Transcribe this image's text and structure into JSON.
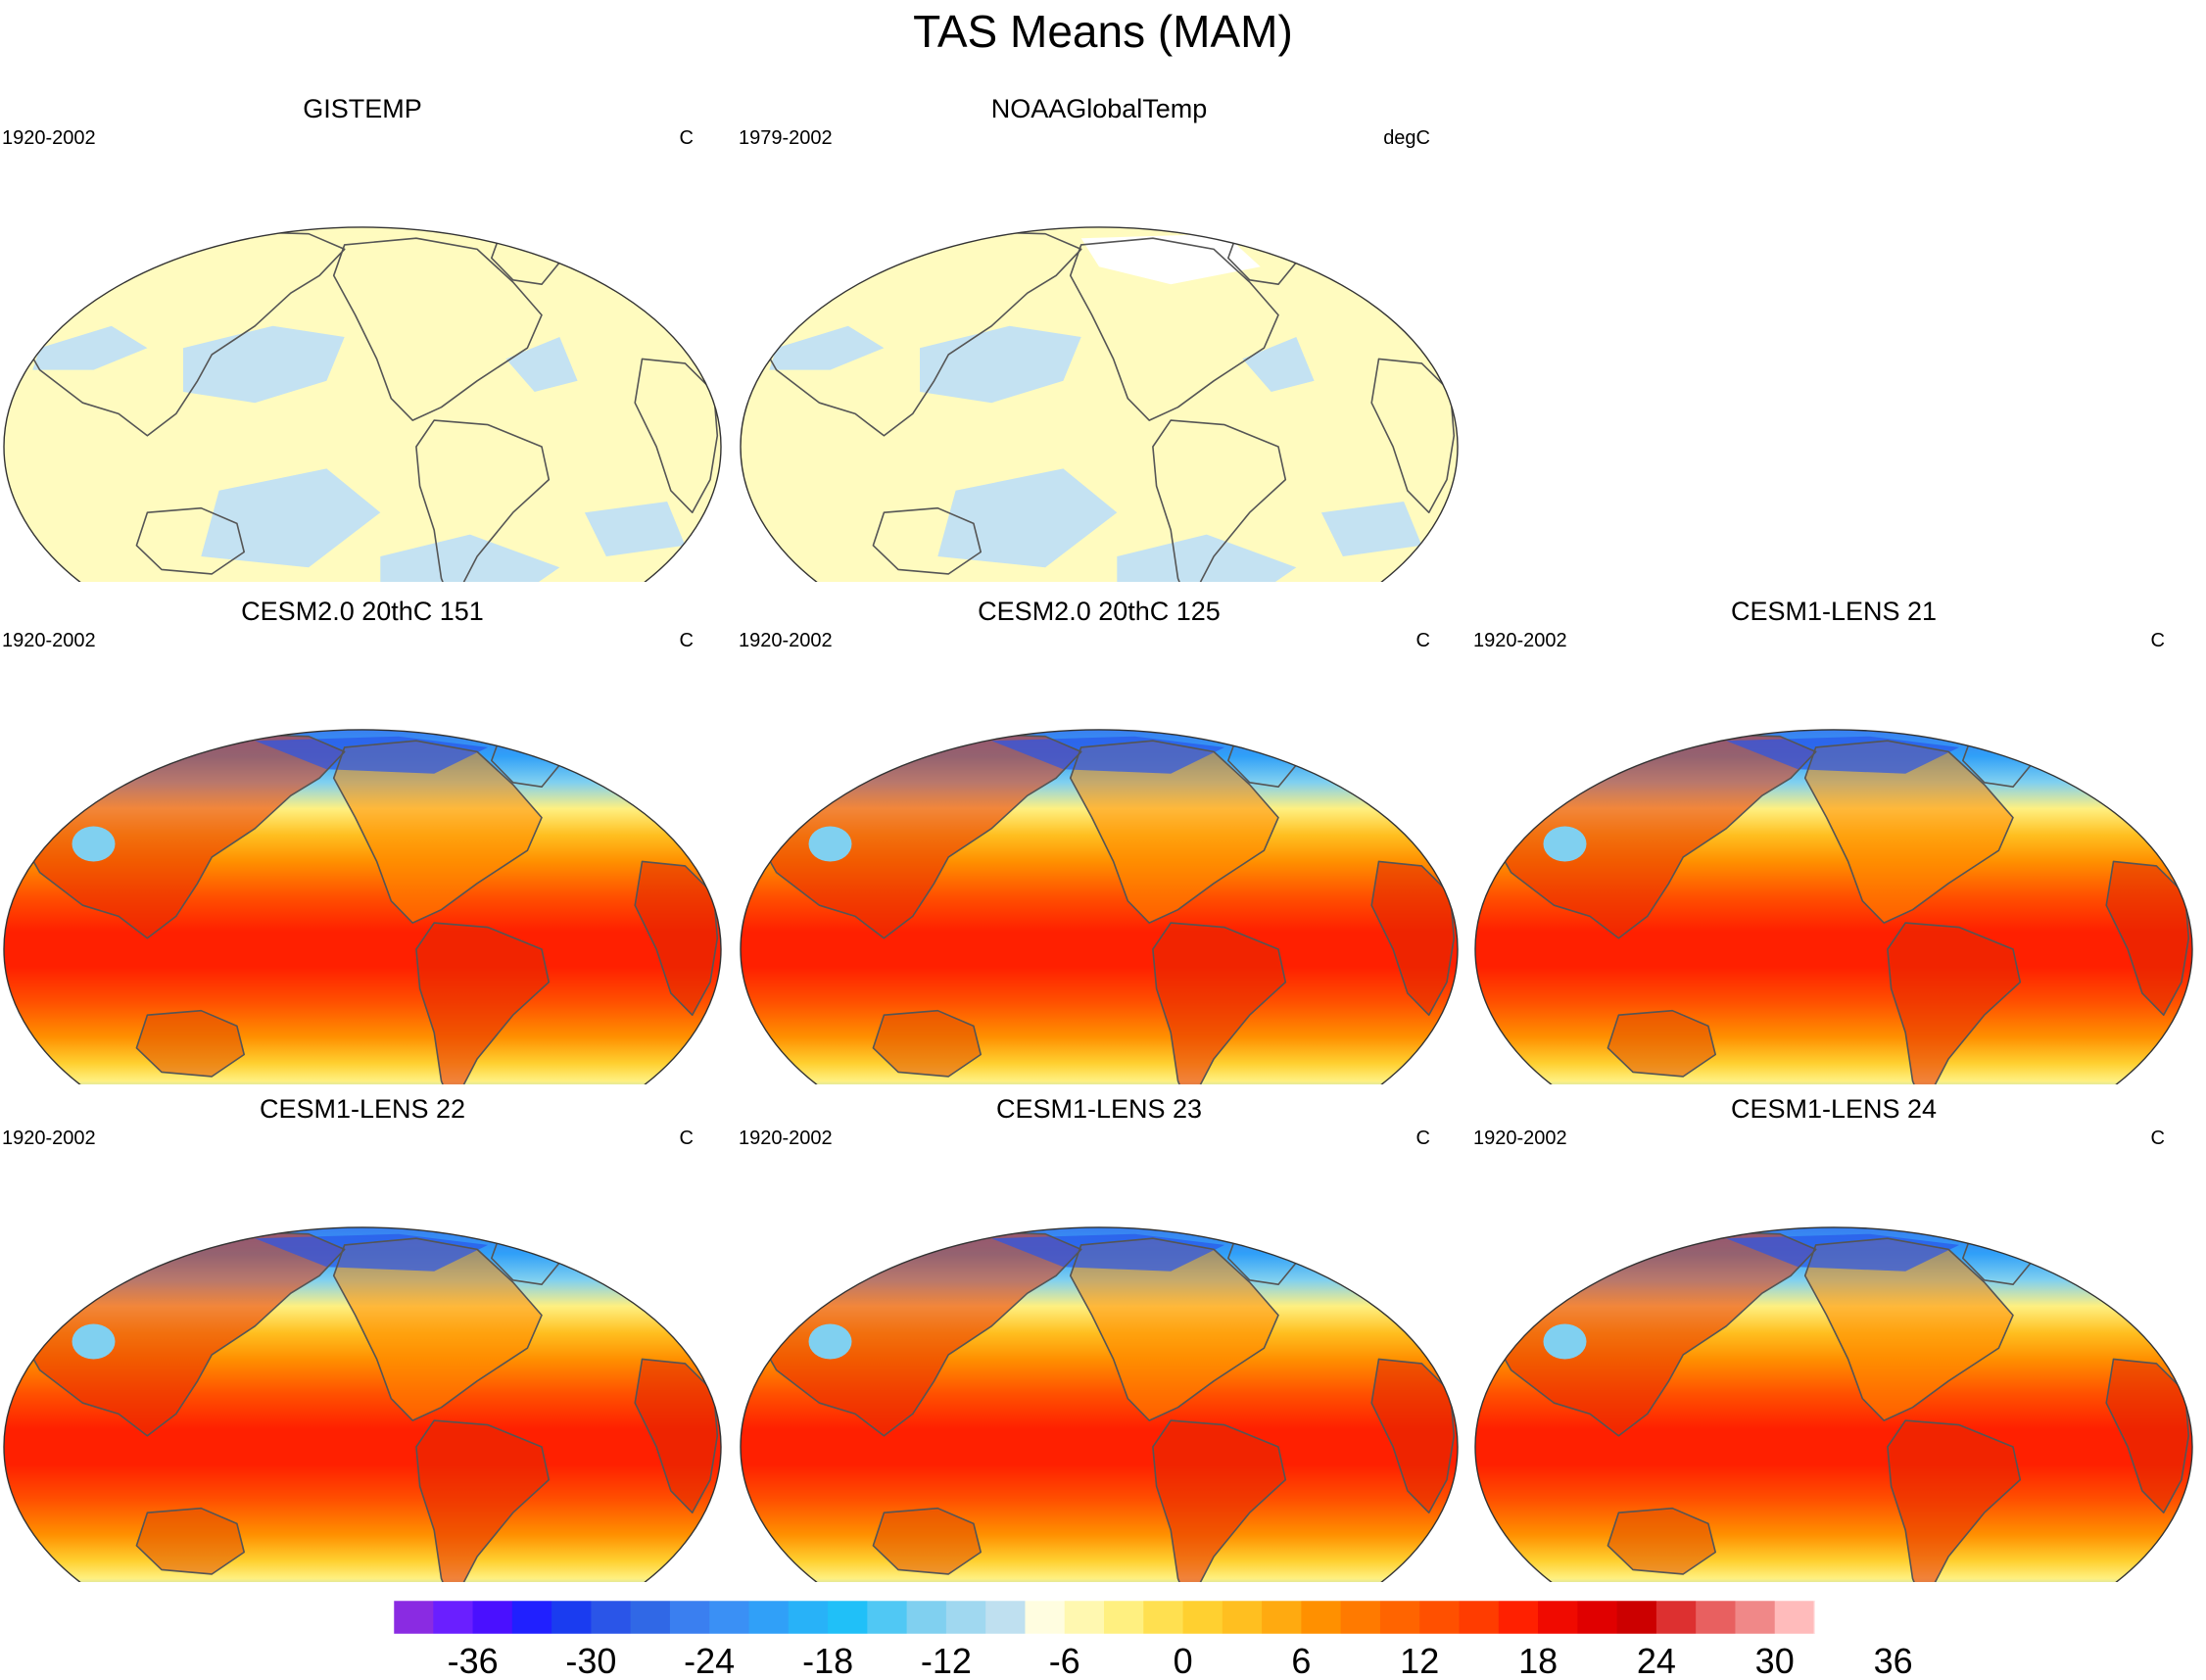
{
  "figure": {
    "title": "TAS Means (MAM)"
  },
  "panels": [
    {
      "title": "GISTEMP",
      "period": "1920-2002",
      "units": "C",
      "style": "obs",
      "missing": "antarctic-strip"
    },
    {
      "title": "NOAAGlobalTemp",
      "period": "1979-2002",
      "units": "degC",
      "style": "obs",
      "missing": "polar"
    },
    {
      "title": "CESM2.0 20thC 151",
      "period": "1920-2002",
      "units": "C",
      "style": "model"
    },
    {
      "title": "CESM2.0 20thC 125",
      "period": "1920-2002",
      "units": "C",
      "style": "model"
    },
    {
      "title": "CESM1-LENS 21",
      "period": "1920-2002",
      "units": "C",
      "style": "model"
    },
    {
      "title": "CESM1-LENS 22",
      "period": "1920-2002",
      "units": "C",
      "style": "model"
    },
    {
      "title": "CESM1-LENS 23",
      "period": "1920-2002",
      "units": "C",
      "style": "model"
    },
    {
      "title": "CESM1-LENS 24",
      "period": "1920-2002",
      "units": "C",
      "style": "model"
    }
  ],
  "colorbar": {
    "tick_labels": [
      "-36",
      "-30",
      "-24",
      "-18",
      "-12",
      "-6",
      "0",
      "6",
      "12",
      "18",
      "24",
      "30",
      "36"
    ],
    "tick_values": [
      -36,
      -30,
      -24,
      -18,
      -12,
      -6,
      0,
      6,
      12,
      18,
      24,
      30,
      36
    ],
    "boundaries_min": -40,
    "boundaries_step": 2,
    "colors": [
      "#8a2be2",
      "#6a1fff",
      "#4a10ff",
      "#2020ff",
      "#1a3cf0",
      "#2a55e8",
      "#3068e6",
      "#3a7ff0",
      "#3a90f5",
      "#30a0f8",
      "#28b2f8",
      "#20c0f8",
      "#50c8f4",
      "#80d0f0",
      "#a0d8f0",
      "#bfe0f0",
      "#fffde0",
      "#fff8b0",
      "#fff080",
      "#ffe050",
      "#ffd030",
      "#ffbf20",
      "#ffaa10",
      "#ff9000",
      "#ff7a00",
      "#ff6400",
      "#ff5000",
      "#ff3c00",
      "#ff2000",
      "#f00a00",
      "#e00000",
      "#cc0000",
      "#dd3030",
      "#e86060",
      "#f08888",
      "#ffbbbb"
    ]
  }
}
